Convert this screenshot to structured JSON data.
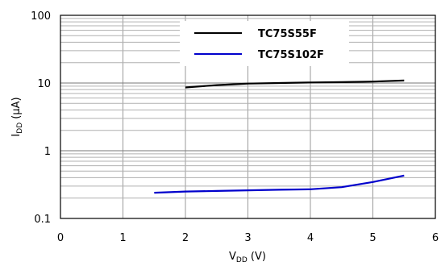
{
  "chart_data": {
    "type": "line",
    "title": "",
    "xlabel": {
      "main": "V",
      "sub": "DD",
      "unit": " (V)"
    },
    "ylabel": {
      "main": "I",
      "sub": "DD",
      "unit": " (μA)"
    },
    "xlim": [
      0,
      6
    ],
    "ylim": [
      0.1,
      100
    ],
    "yscale": "log",
    "grid": true,
    "legend_position": "top-right",
    "x_ticks": [
      "0",
      "1",
      "2",
      "3",
      "4",
      "5",
      "6"
    ],
    "y_ticks": [
      "0.1",
      "1",
      "10",
      "100"
    ],
    "series": [
      {
        "name": "TC75S55F",
        "color": "#000000",
        "x": [
          2.0,
          2.5,
          3.0,
          3.5,
          4.0,
          4.5,
          5.0,
          5.5
        ],
        "y": [
          8.6,
          9.3,
          9.8,
          10.0,
          10.2,
          10.3,
          10.5,
          10.9
        ]
      },
      {
        "name": "TC75S102F",
        "color": "#0000cc",
        "x": [
          1.5,
          2.0,
          2.5,
          3.0,
          3.5,
          4.0,
          4.5,
          5.0,
          5.5
        ],
        "y": [
          0.24,
          0.25,
          0.255,
          0.26,
          0.265,
          0.27,
          0.29,
          0.345,
          0.43
        ]
      }
    ]
  }
}
